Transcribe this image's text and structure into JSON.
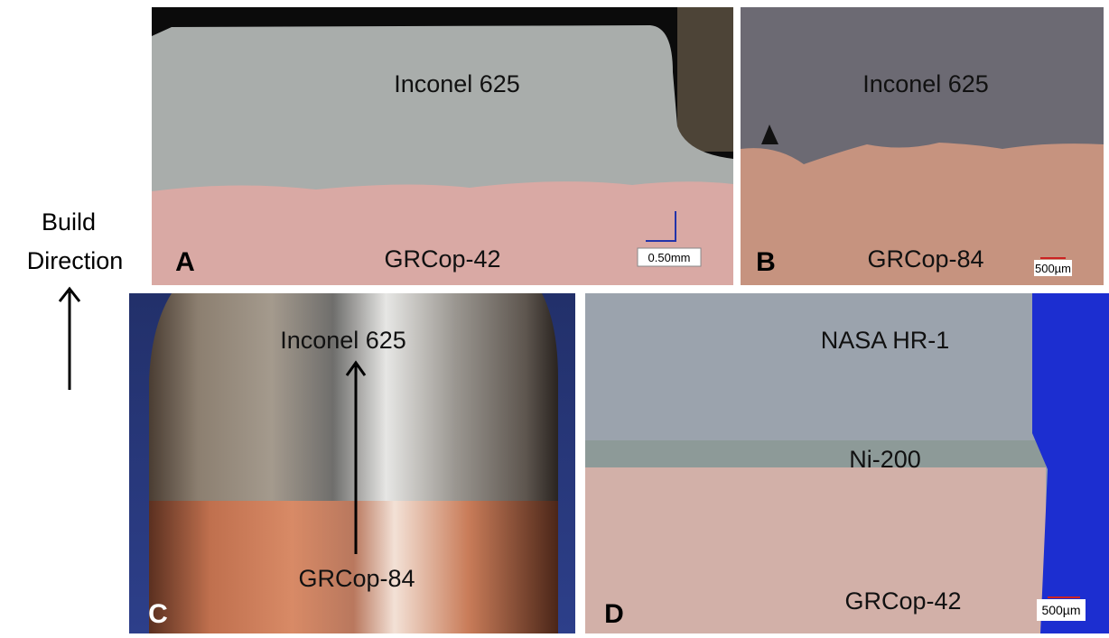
{
  "side_label": {
    "lines": [
      "Build",
      "Direction"
    ]
  },
  "panels": [
    {
      "letter": "A",
      "top_label": "Inconel 625",
      "bottom_label": "GRCop-42",
      "scale_bar": "0.50mm"
    },
    {
      "letter": "B",
      "top_label": "Inconel 625",
      "bottom_label": "GRCop-84",
      "scale_bar": "500µm"
    },
    {
      "letter": "C",
      "top_label": "Inconel 625",
      "bottom_label": "GRCop-84"
    },
    {
      "letter": "D",
      "top_label": "NASA HR-1",
      "middle_label": "Ni-200",
      "bottom_label": "GRCop-42",
      "scale_bar": "500µm"
    }
  ]
}
